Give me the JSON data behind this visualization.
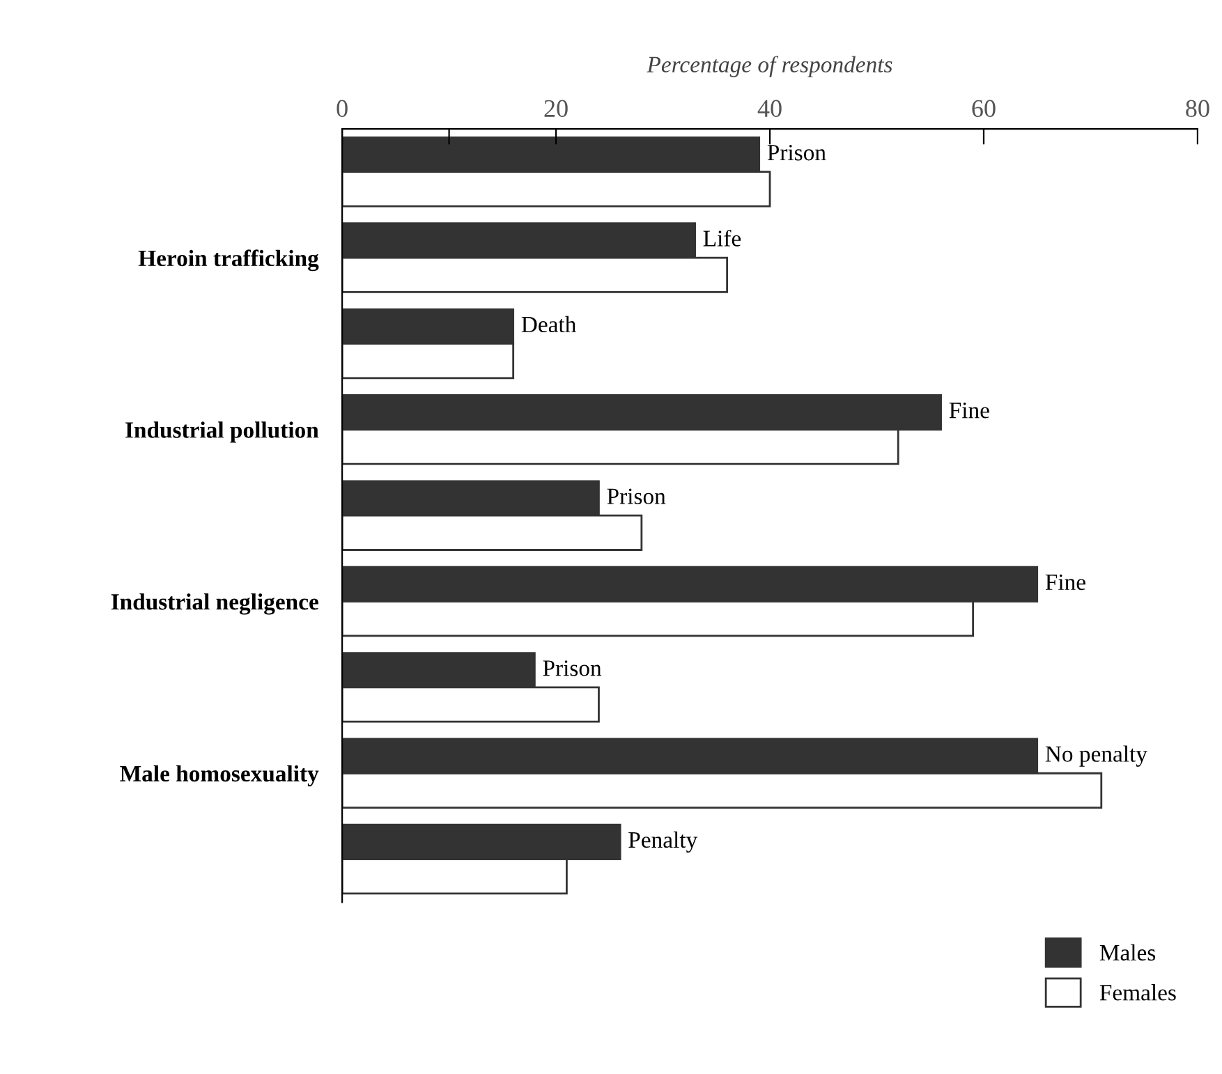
{
  "chart_data": {
    "type": "bar",
    "orientation": "horizontal",
    "xlabel": "Percentage of respondents",
    "categories": [
      null,
      "Heroin trafficking",
      null,
      "Industrial pollution",
      null,
      "Industrial negligence",
      null,
      "Male homosexuality",
      null
    ],
    "series": [
      {
        "name": "Males",
        "color": "#333333",
        "values": [
          39,
          33,
          16,
          56,
          24,
          65,
          18,
          65,
          26
        ],
        "value_labels": [
          "Prison",
          "Life",
          "Death",
          "Fine",
          "Prison",
          "Fine",
          "Prison",
          "No penalty",
          "Penalty"
        ]
      },
      {
        "name": "Females",
        "color": "#ffffff",
        "values": [
          40,
          36,
          16,
          52,
          28,
          59,
          24,
          71,
          21
        ]
      }
    ],
    "xlim": [
      0,
      80
    ],
    "xticks": [
      0,
      {
        "value": 10,
        "label": null
      },
      20,
      40,
      60,
      80
    ],
    "grid": false,
    "legend": "bottom right"
  }
}
